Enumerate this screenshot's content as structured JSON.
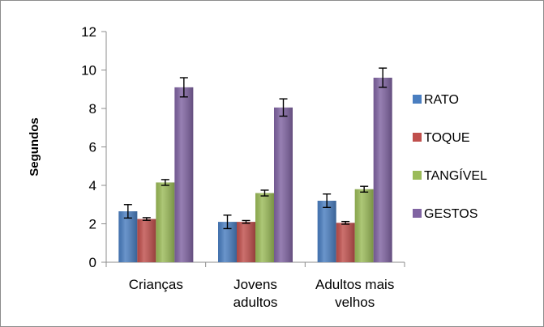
{
  "chart_data": {
    "type": "bar",
    "ylabel": "Segundos",
    "xlabel": "",
    "ylim": [
      0,
      12
    ],
    "yticks": [
      0,
      2,
      4,
      6,
      8,
      10,
      12
    ],
    "grid": false,
    "legend_position": "right",
    "categories": [
      [
        "Crianças"
      ],
      [
        "Jovens",
        "adultos"
      ],
      [
        "Adultos mais",
        "velhos"
      ]
    ],
    "series": [
      {
        "name": "RATO",
        "color": "#4a7ec0",
        "values": [
          2.65,
          2.1,
          3.2
        ],
        "errors": [
          0.35,
          0.35,
          0.35
        ]
      },
      {
        "name": "TOQUE",
        "color": "#c0504d",
        "values": [
          2.25,
          2.1,
          2.05
        ],
        "errors": [
          0.07,
          0.07,
          0.07
        ]
      },
      {
        "name": "TANGÍVEL",
        "color": "#9bbb59",
        "values": [
          4.15,
          3.6,
          3.8
        ],
        "errors": [
          0.15,
          0.15,
          0.15
        ]
      },
      {
        "name": "GESTOS",
        "color": "#8064a2",
        "values": [
          9.1,
          8.05,
          9.6
        ],
        "errors": [
          0.5,
          0.45,
          0.5
        ]
      }
    ]
  }
}
